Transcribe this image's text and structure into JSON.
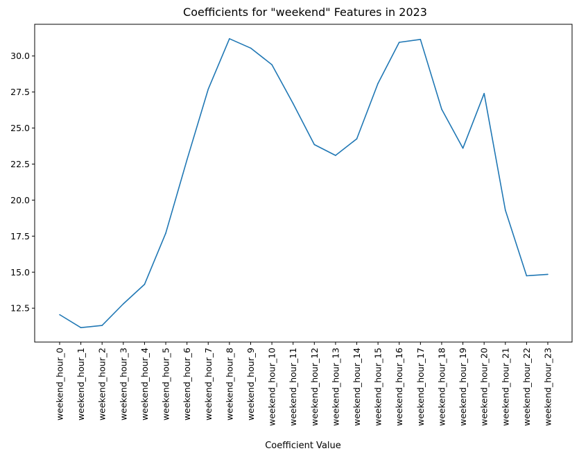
{
  "chart_data": {
    "type": "line",
    "title": "Coefficients for \"weekend\" Features in 2023",
    "xlabel": "Coefficient Value",
    "ylabel": "",
    "categories": [
      "weekend_hour_0",
      "weekend_hour_1",
      "weekend_hour_2",
      "weekend_hour_3",
      "weekend_hour_4",
      "weekend_hour_5",
      "weekend_hour_6",
      "weekend_hour_7",
      "weekend_hour_8",
      "weekend_hour_9",
      "weekend_hour_10",
      "weekend_hour_11",
      "weekend_hour_12",
      "weekend_hour_13",
      "weekend_hour_14",
      "weekend_hour_15",
      "weekend_hour_16",
      "weekend_hour_17",
      "weekend_hour_18",
      "weekend_hour_19",
      "weekend_hour_20",
      "weekend_hour_21",
      "weekend_hour_22",
      "weekend_hour_23"
    ],
    "series": [
      {
        "values": [
          12.05,
          11.15,
          11.3,
          12.8,
          14.15,
          17.7,
          22.8,
          27.7,
          31.2,
          30.55,
          29.4,
          26.7,
          23.85,
          23.1,
          24.25,
          28.1,
          30.95,
          31.15,
          26.3,
          23.6,
          27.4,
          19.3,
          14.75,
          14.85
        ],
        "color": "#1f77b4"
      }
    ],
    "yticks": [
      "12.5",
      "15.0",
      "17.5",
      "20.0",
      "22.5",
      "25.0",
      "27.5",
      "30.0"
    ],
    "ylim": [
      10.15,
      32.2
    ],
    "grid": false,
    "legend": "none"
  }
}
